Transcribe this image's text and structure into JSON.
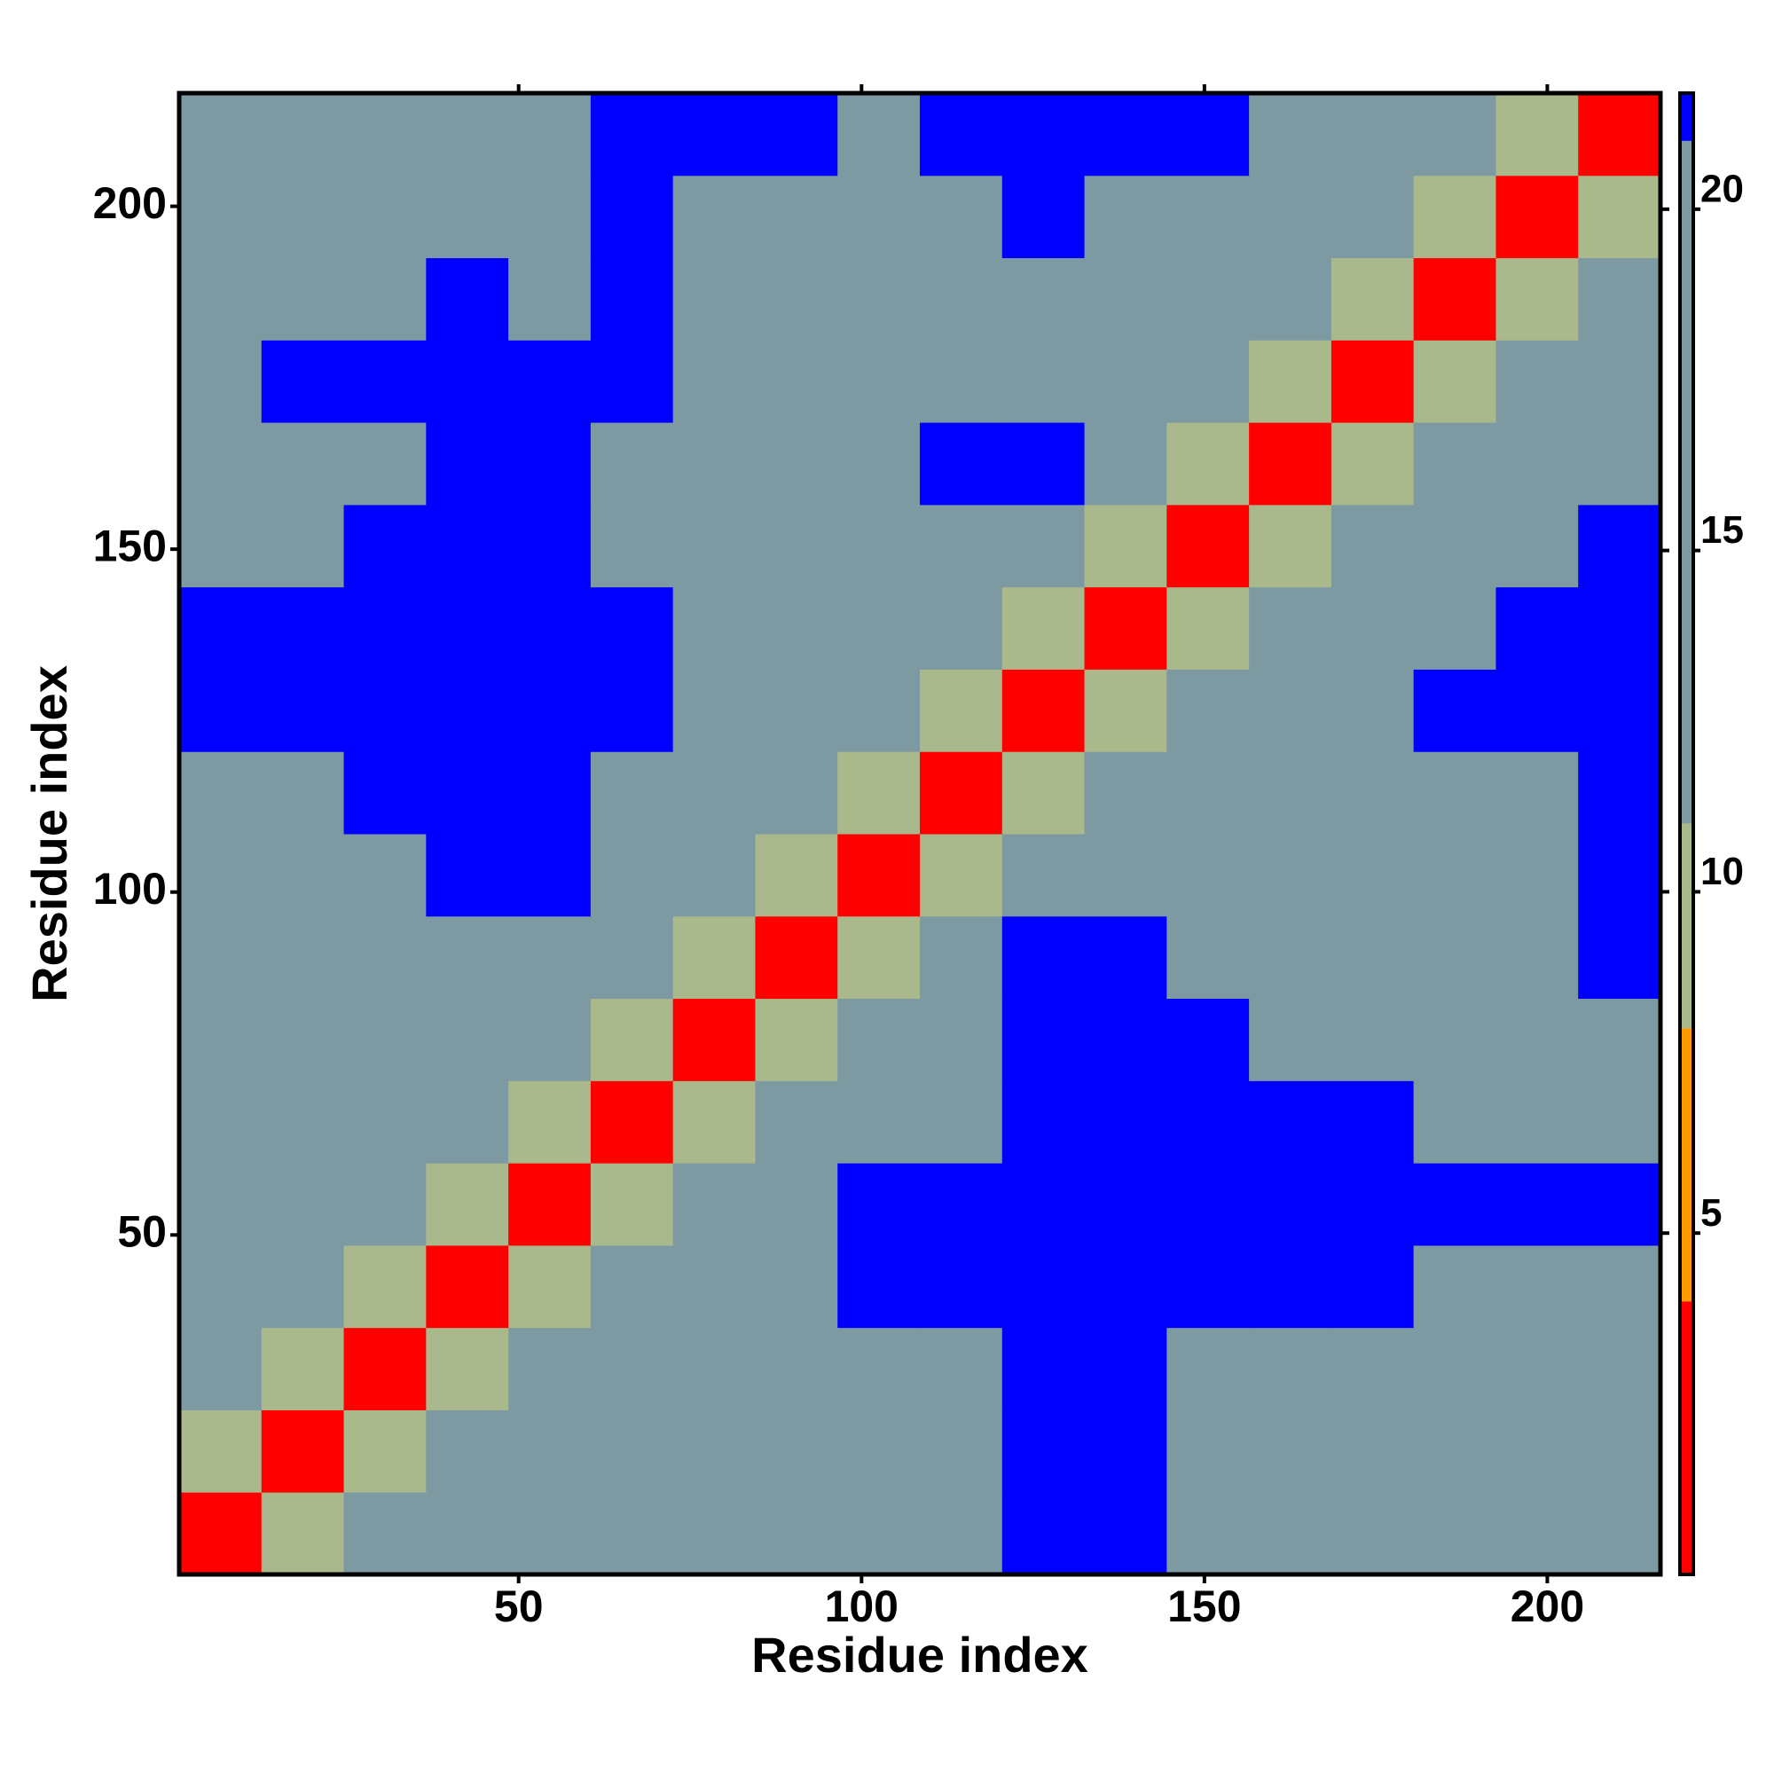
{
  "chart_data": {
    "type": "heatmap",
    "xlabel": "Residue index",
    "ylabel": "Residue index",
    "xlim": [
      0.5,
      216.5
    ],
    "ylim": [
      0.5,
      216.5
    ],
    "xticks": [
      50,
      100,
      150,
      200
    ],
    "yticks": [
      50,
      100,
      150,
      200
    ],
    "xbins": [
      0.5,
      12.5,
      24.5,
      36.5,
      48.5,
      60.5,
      72.5,
      84.5,
      96.5,
      108.5,
      120.5,
      132.5,
      144.5,
      156.5,
      168.5,
      180.5,
      192.5,
      204.5,
      216.5
    ],
    "ybins": [
      0.5,
      12.5,
      24.5,
      36.5,
      48.5,
      60.5,
      72.5,
      84.5,
      96.5,
      108.5,
      120.5,
      132.5,
      144.5,
      156.5,
      168.5,
      180.5,
      192.5,
      204.5,
      216.5
    ],
    "z": [
      [
        3,
        9,
        12,
        12,
        13,
        13,
        13,
        14,
        16,
        16,
        25,
        25,
        14,
        14,
        14,
        14,
        14,
        14
      ],
      [
        9,
        3,
        9,
        12,
        13,
        13,
        13,
        14,
        16,
        16,
        25,
        25,
        14,
        13,
        14,
        13,
        13,
        14
      ],
      [
        12,
        9,
        3,
        9,
        12,
        13,
        13,
        14,
        17,
        17,
        25,
        25,
        16,
        14,
        16,
        14,
        13,
        14
      ],
      [
        12,
        12,
        9,
        3,
        9,
        12,
        14,
        17,
        25,
        25,
        25,
        25,
        25,
        25,
        25,
        14,
        14,
        16
      ],
      [
        12,
        12,
        12,
        9,
        3,
        9,
        13,
        16,
        25,
        25,
        25,
        25,
        25,
        25,
        25,
        25,
        25,
        25
      ],
      [
        12,
        13,
        12,
        12,
        9,
        3,
        9,
        13,
        17,
        17,
        25,
        25,
        25,
        25,
        25,
        17,
        17,
        17
      ],
      [
        13,
        12,
        13,
        13,
        12,
        9,
        3,
        9,
        14,
        17,
        25,
        25,
        25,
        14,
        14,
        17,
        17,
        17
      ],
      [
        12,
        13,
        14,
        14,
        13,
        12,
        9,
        3,
        9,
        14,
        25,
        25,
        14,
        13,
        14,
        17,
        17,
        25
      ],
      [
        14,
        14,
        14,
        25,
        25,
        14,
        14,
        9,
        3,
        9,
        14,
        14,
        14,
        13,
        14,
        17,
        17,
        25
      ],
      [
        14,
        14,
        25,
        25,
        25,
        17,
        14,
        14,
        9,
        3,
        9,
        13,
        13,
        14,
        16,
        17,
        17,
        25
      ],
      [
        25,
        25,
        25,
        25,
        25,
        25,
        17,
        17,
        14,
        9,
        3,
        9,
        14,
        14,
        17,
        25,
        25,
        25
      ],
      [
        25,
        25,
        25,
        25,
        25,
        25,
        14,
        14,
        13,
        13,
        9,
        3,
        9,
        14,
        14,
        16,
        25,
        25
      ],
      [
        13,
        13,
        25,
        25,
        25,
        17,
        14,
        13,
        13,
        14,
        14,
        9,
        3,
        9,
        13,
        14,
        14,
        25
      ],
      [
        13,
        13,
        17,
        25,
        25,
        17,
        14,
        13,
        14,
        25,
        25,
        14,
        9,
        3,
        9,
        14,
        14,
        17
      ],
      [
        17,
        25,
        25,
        25,
        25,
        25,
        17,
        14,
        14,
        14,
        14,
        14,
        14,
        9,
        3,
        9,
        14,
        17
      ],
      [
        13,
        13,
        13,
        25,
        18,
        25,
        17,
        17,
        16,
        17,
        14,
        14,
        13,
        13,
        9,
        3,
        9,
        14
      ],
      [
        13,
        13,
        13,
        14,
        18,
        25,
        17,
        17,
        16,
        17,
        25,
        14,
        14,
        14,
        13,
        9,
        3,
        9
      ],
      [
        14,
        13,
        14,
        16,
        18,
        25,
        25,
        25,
        17,
        25,
        25,
        25,
        25,
        16,
        14,
        14,
        9,
        3
      ]
    ],
    "zlim": [
      0,
      21.7
    ],
    "zticks": [
      5,
      10,
      15,
      20
    ],
    "colorscale": [
      {
        "max": 4,
        "color": "#ff0000"
      },
      {
        "max": 8,
        "color": "#ff9900"
      },
      {
        "max": 11,
        "color": "#aab98c"
      },
      {
        "max": 21,
        "color": "#7d9aa3"
      }
    ],
    "over_color": "#0000ff"
  }
}
